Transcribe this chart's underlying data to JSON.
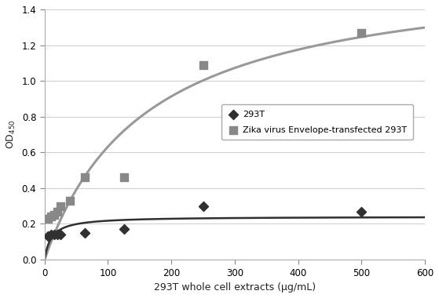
{
  "xlabel": "293T whole cell extracts (μg/mL)",
  "ylabel": "OD 450",
  "xlim": [
    0,
    600
  ],
  "ylim": [
    0,
    1.4
  ],
  "xticks": [
    0,
    100,
    200,
    300,
    400,
    500,
    600
  ],
  "yticks": [
    0,
    0.2,
    0.4,
    0.6,
    0.8,
    1.0,
    1.2,
    1.4
  ],
  "293T_scatter_x": [
    5,
    10,
    15,
    20,
    25,
    63,
    125,
    250,
    500
  ],
  "293T_scatter_y": [
    0.13,
    0.14,
    0.14,
    0.14,
    0.14,
    0.15,
    0.17,
    0.3,
    0.27
  ],
  "zika_scatter_x": [
    5,
    10,
    15,
    20,
    25,
    40,
    63,
    125,
    250,
    500
  ],
  "zika_scatter_y": [
    0.23,
    0.24,
    0.25,
    0.27,
    0.3,
    0.33,
    0.46,
    0.46,
    1.09,
    1.27
  ],
  "scatter_293T_color": "#303030",
  "scatter_zika_color": "#888888",
  "curve_293T_color": "#303030",
  "curve_zika_color": "#999999",
  "legend_293T": "293T",
  "legend_zika": "Zika virus Envelope-transfected 293T",
  "background_color": "#ffffff",
  "grid_color": "#d0d0d0",
  "curve_293T_params": [
    0.28,
    0.015
  ],
  "curve_zika_params": [
    1.12,
    0.025
  ]
}
